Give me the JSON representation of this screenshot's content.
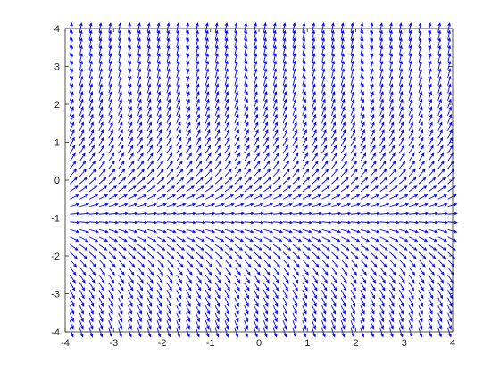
{
  "chart_data": {
    "type": "quiver",
    "title": "",
    "xlabel": "",
    "ylabel": "",
    "xlim": [
      -4,
      4
    ],
    "ylim": [
      -4,
      4
    ],
    "xticks": [
      "-4",
      "-3",
      "-2",
      "-1",
      "0",
      "1",
      "2",
      "3",
      "4"
    ],
    "yticks": [
      "-4",
      "-3",
      "-2",
      "-1",
      "0",
      "1",
      "2",
      "3",
      "4"
    ],
    "grid": false,
    "box": true,
    "field": {
      "x_start": -3.9,
      "x_step": 0.2,
      "x_count": 40,
      "y_start": -3.9,
      "y_step": 0.2,
      "y_count": 40,
      "dx": 1,
      "dy": "y + 1",
      "normalized": true,
      "nullcline_y": -1
    },
    "arrow_color": "#0000ff"
  }
}
